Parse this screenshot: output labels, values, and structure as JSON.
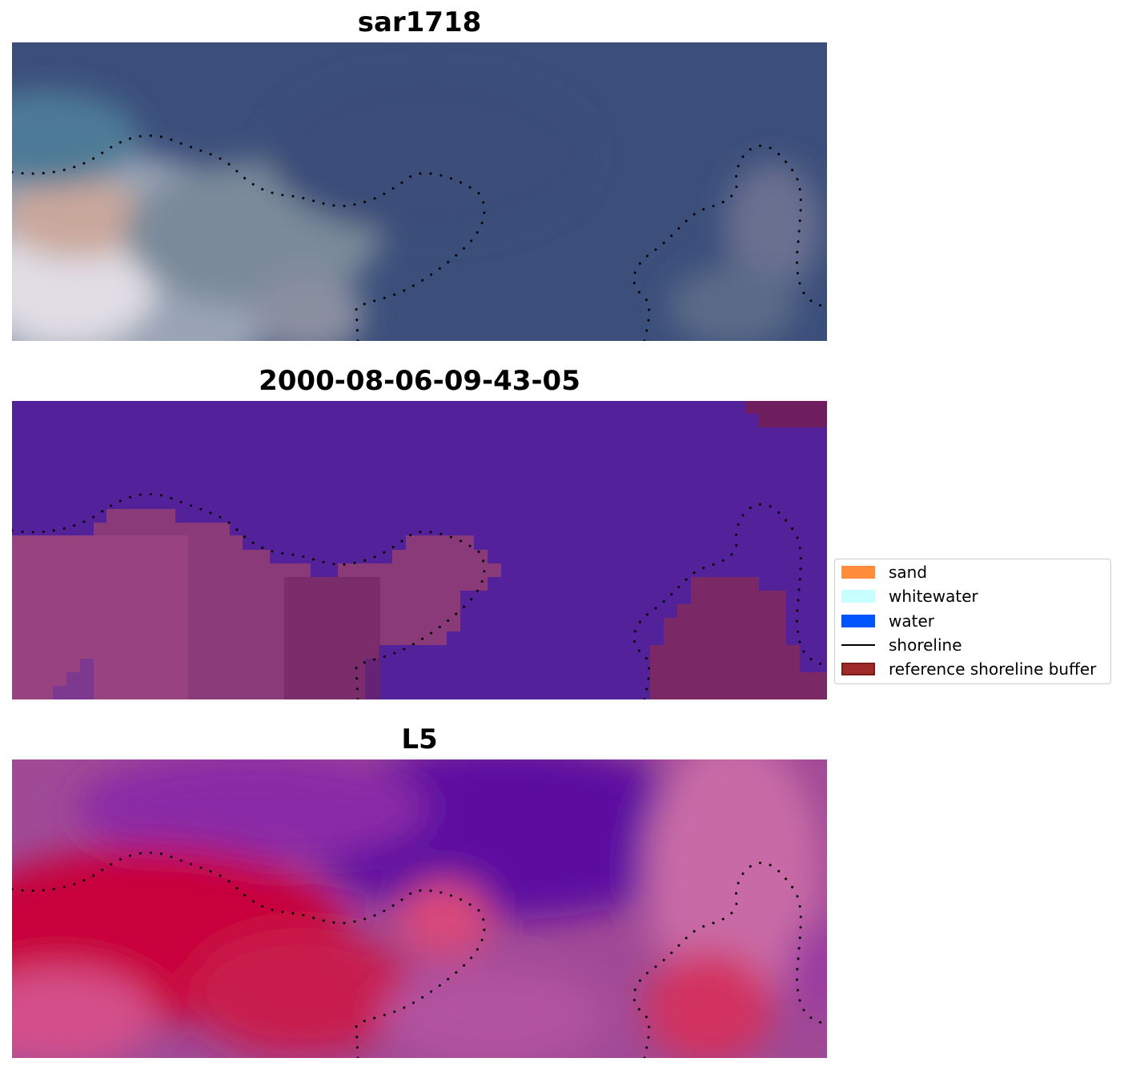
{
  "panels": [
    {
      "title": "sar1718"
    },
    {
      "title": "2000-08-06-09-43-05"
    },
    {
      "title": "L5"
    }
  ],
  "legend": {
    "items": [
      {
        "label": "sand",
        "kind": "patch",
        "color": "#ff8c3a"
      },
      {
        "label": "whitewater",
        "kind": "patch",
        "color": "#c8ffff"
      },
      {
        "label": "water",
        "kind": "patch",
        "color": "#0055ff"
      },
      {
        "label": "shoreline",
        "kind": "line",
        "color": "#000000"
      },
      {
        "label": "reference shoreline buffer",
        "kind": "patch",
        "color": "#a02a2a",
        "edge": "#7a1c1c"
      }
    ]
  },
  "colors": {
    "rgb_water": "#3b4f7a",
    "rgb_sand": "#d9c0b8",
    "classified_water": "#53229a",
    "classified_buffer": "#7a2f6e",
    "ndwi_high": "#5a0aa0",
    "ndwi_low": "#c8003a",
    "shoreline_dots": "#000000"
  }
}
